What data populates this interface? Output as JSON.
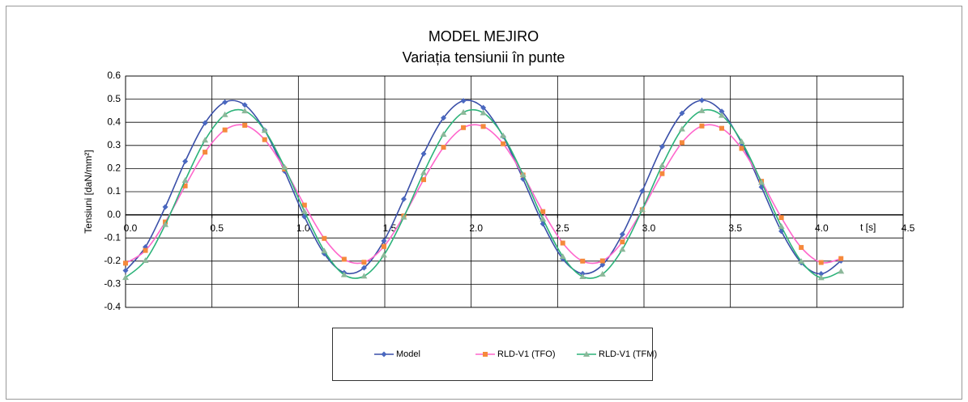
{
  "chart_data": {
    "type": "line",
    "title": "MODEL MEJIRO",
    "subtitle": "Variația tensiunii în punte",
    "x_label": "t  [s]",
    "y_label": "Tensiuni [daN/mm²]",
    "x": [
      0,
      0.115,
      0.23,
      0.345,
      0.46,
      0.575,
      0.69,
      0.805,
      0.92,
      1.035,
      1.15,
      1.265,
      1.38,
      1.495,
      1.61,
      1.725,
      1.84,
      1.955,
      2.07,
      2.185,
      2.3,
      2.415,
      2.53,
      2.645,
      2.76,
      2.875,
      2.99,
      3.105,
      3.22,
      3.335,
      3.45,
      3.565,
      3.68,
      3.795,
      3.91,
      4.025,
      4.14
    ],
    "series": [
      {
        "name": "Model",
        "color": "#3a4fa8",
        "marker": "diamond",
        "marker_color": "#4a68c0",
        "values": [
          -0.241,
          -0.139,
          0.034,
          0.231,
          0.397,
          0.487,
          0.475,
          0.366,
          0.189,
          -0.008,
          -0.168,
          -0.25,
          -0.229,
          -0.113,
          0.068,
          0.264,
          0.419,
          0.493,
          0.463,
          0.339,
          0.155,
          -0.039,
          -0.19,
          -0.254,
          -0.216,
          -0.084,
          0.103,
          0.295,
          0.439,
          0.495,
          0.447,
          0.31,
          0.12,
          -0.071,
          -0.207,
          -0.255,
          -0.199
        ]
      },
      {
        "name": "RLD-V1 (TFO)",
        "color": "#ff66cc",
        "marker": "square",
        "marker_color": "#f5893c",
        "values": [
          -0.209,
          -0.154,
          -0.031,
          0.125,
          0.271,
          0.367,
          0.387,
          0.325,
          0.198,
          0.042,
          -0.102,
          -0.192,
          -0.205,
          -0.137,
          -0.005,
          0.152,
          0.292,
          0.377,
          0.382,
          0.307,
          0.172,
          0.014,
          -0.122,
          -0.2,
          -0.199,
          -0.117,
          0.022,
          0.178,
          0.312,
          0.384,
          0.374,
          0.287,
          0.145,
          -0.012,
          -0.141,
          -0.206,
          -0.189
        ]
      },
      {
        "name": "RLD-V1 (TFM)",
        "color": "#2db37a",
        "marker": "triangle",
        "marker_color": "#8cb89a",
        "values": [
          -0.271,
          -0.197,
          -0.042,
          0.149,
          0.323,
          0.433,
          0.449,
          0.365,
          0.206,
          0.015,
          -0.156,
          -0.259,
          -0.265,
          -0.174,
          -0.01,
          0.182,
          0.348,
          0.443,
          0.441,
          0.342,
          0.174,
          -0.018,
          -0.18,
          -0.267,
          -0.256,
          -0.149,
          0.023,
          0.214,
          0.371,
          0.45,
          0.43,
          0.317,
          0.14,
          -0.05,
          -0.201,
          -0.272,
          -0.244
        ]
      }
    ],
    "xlim": [
      0,
      4.5
    ],
    "xticks": [
      {
        "value": 0,
        "label": "0.0"
      },
      0.5,
      {
        "value": 1,
        "label": "1.0"
      },
      1.5,
      {
        "value": 2,
        "label": "2.0"
      },
      2.5,
      {
        "value": 3,
        "label": "3.0"
      },
      3.5,
      {
        "value": 4,
        "label": "4.0"
      },
      4.5
    ],
    "ylim": [
      -0.4,
      0.6
    ],
    "yticks": [
      -0.4,
      -0.3,
      -0.2,
      -0.1,
      {
        "value": 0,
        "label": "0.0"
      },
      0.1,
      0.2,
      0.3,
      0.4,
      0.5,
      0.6
    ],
    "grid": true,
    "legend": "bottom"
  }
}
